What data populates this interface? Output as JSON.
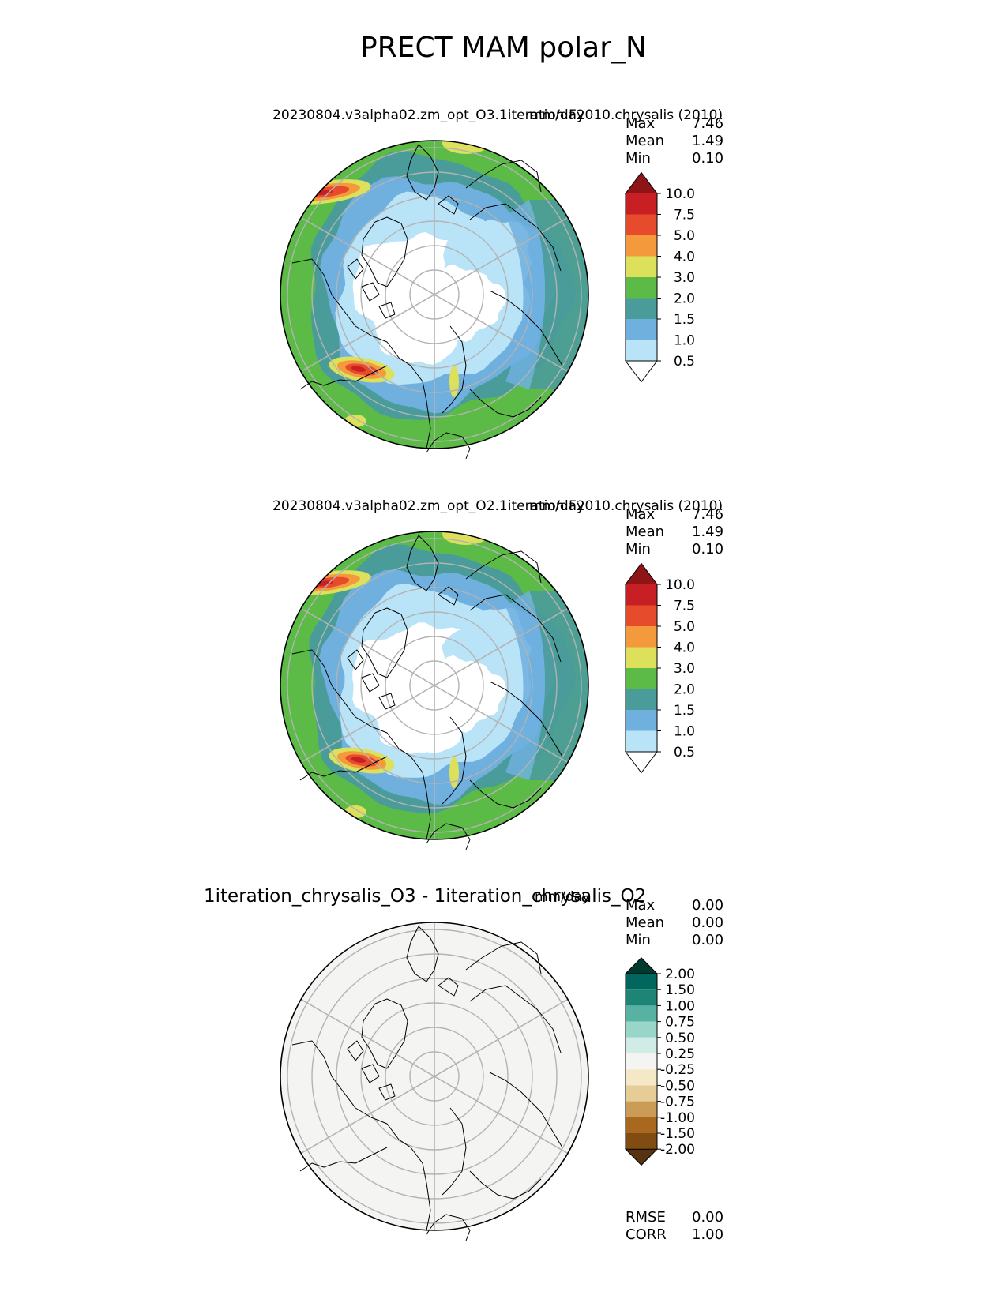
{
  "title": "PRECT MAM polar_N",
  "panels": [
    {
      "name": "test",
      "title": "20230804.v3alpha02.zm_opt_O3.1iteration.F2010.chrysalis (2010)",
      "units": "mm/day",
      "stats": {
        "max_label": "Max",
        "max": "7.46",
        "mean_label": "Mean",
        "mean": "1.49",
        "min_label": "Min",
        "min": "0.10"
      }
    },
    {
      "name": "reference",
      "title": "20230804.v3alpha02.zm_opt_O2.1iteration.F2010.chrysalis (2010)",
      "units": "mm/day",
      "stats": {
        "max_label": "Max",
        "max": "7.46",
        "mean_label": "Mean",
        "mean": "1.49",
        "min_label": "Min",
        "min": "0.10"
      }
    },
    {
      "name": "difference",
      "title": "1iteration_chrysalis_O3 - 1iteration_chrysalis_O2",
      "units": "mm/day",
      "stats": {
        "max_label": "Max",
        "max": "0.00",
        "mean_label": "Mean",
        "mean": "0.00",
        "min_label": "Min",
        "min": "0.00"
      },
      "footer": {
        "rmse_label": "RMSE",
        "rmse": "0.00",
        "corr_label": "CORR",
        "corr": "1.00"
      }
    }
  ],
  "precip_colorbar": {
    "levels": [
      "0.5",
      "1.0",
      "1.5",
      "2.0",
      "3.0",
      "4.0",
      "5.0",
      "7.5",
      "10.0"
    ],
    "colors": [
      "#ffffff",
      "#b9e3f7",
      "#6fb0df",
      "#4a9c9a",
      "#5cbb47",
      "#dde05a",
      "#f49a3c",
      "#e64b2c",
      "#c81f25",
      "#8f1418"
    ]
  },
  "diff_colorbar": {
    "levels": [
      "-2.00",
      "-1.50",
      "-1.00",
      "-0.75",
      "-0.50",
      "-0.25",
      "0.25",
      "0.50",
      "0.75",
      "1.00",
      "1.50",
      "2.00"
    ],
    "colors": [
      "#563311",
      "#804c12",
      "#a8691f",
      "#cb9c55",
      "#e6cd97",
      "#f5e8c7",
      "#f4f4f2",
      "#d1ebe7",
      "#99d6ca",
      "#57b2a3",
      "#1e8576",
      "#01665e",
      "#00392f"
    ]
  },
  "map_colors": {
    "outline": "#000000",
    "grid": "#b3b3b3",
    "diff_fill": "#f4f4f2"
  }
}
